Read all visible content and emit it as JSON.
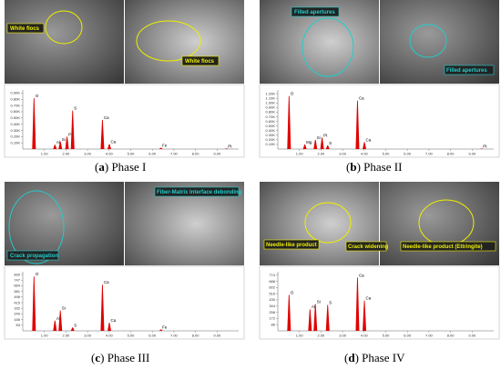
{
  "panels": [
    {
      "letter": "a",
      "caption": "Phase I",
      "image_labels": [
        "White flocs",
        "White flocs"
      ],
      "spectrum": {
        "ylim": [
          0,
          0.95
        ],
        "yticks": [
          {
            "value": 0.1,
            "label": "0.10K"
          },
          {
            "value": 0.2,
            "label": "0.20K"
          },
          {
            "value": 0.3,
            "label": "0.30K"
          },
          {
            "value": 0.4,
            "label": "0.40K"
          },
          {
            "value": 0.5,
            "label": "0.50K"
          },
          {
            "value": 0.6,
            "label": "0.60K"
          },
          {
            "value": 0.7,
            "label": "0.70K"
          },
          {
            "value": 0.8,
            "label": "0.80K"
          },
          {
            "value": 0.9,
            "label": "0.90K"
          }
        ],
        "xlim": [
          0,
          10
        ],
        "xticks": [
          {
            "value": 1,
            "label": "1.00"
          },
          {
            "value": 2,
            "label": "2.00"
          },
          {
            "value": 3,
            "label": "3.00"
          },
          {
            "value": 4,
            "label": "4.00"
          },
          {
            "value": 5,
            "label": "5.00"
          },
          {
            "value": 6,
            "label": "6.00"
          },
          {
            "value": 7,
            "label": "7.00"
          },
          {
            "value": 8,
            "label": "8.00"
          },
          {
            "value": 9,
            "label": "9.00"
          }
        ],
        "peaks": [
          {
            "label": "O",
            "x": 0.52,
            "y": 0.82
          },
          {
            "label": "Al",
            "x": 1.49,
            "y": 0.07
          },
          {
            "label": "Si",
            "x": 1.74,
            "y": 0.12
          },
          {
            "label": "Pt",
            "x": 2.05,
            "y": 0.2
          },
          {
            "label": "S",
            "x": 2.31,
            "y": 0.62
          },
          {
            "label": "Ca",
            "x": 3.69,
            "y": 0.47
          },
          {
            "label": "Ca",
            "x": 4.01,
            "y": 0.08
          },
          {
            "label": "Fe",
            "x": 6.4,
            "y": 0.02
          },
          {
            "label": "Pt",
            "x": 9.44,
            "y": 0.01
          }
        ]
      }
    },
    {
      "letter": "b",
      "caption": "Phase II",
      "image_labels": [
        "Filled apertures",
        "Filled apertures"
      ],
      "spectrum": {
        "ylim": [
          0,
          1.28
        ],
        "yticks": [
          {
            "value": 0.1,
            "label": "0.10K"
          },
          {
            "value": 0.2,
            "label": "0.20K"
          },
          {
            "value": 0.3,
            "label": "0.30K"
          },
          {
            "value": 0.4,
            "label": "0.40K"
          },
          {
            "value": 0.5,
            "label": "0.50K"
          },
          {
            "value": 0.6,
            "label": "0.60K"
          },
          {
            "value": 0.7,
            "label": "0.70K"
          },
          {
            "value": 0.8,
            "label": "0.80K"
          },
          {
            "value": 0.9,
            "label": "0.90K"
          },
          {
            "value": 1.0,
            "label": "1.00K"
          },
          {
            "value": 1.1,
            "label": "1.10K"
          },
          {
            "value": 1.2,
            "label": "1.20K"
          }
        ],
        "xlim": [
          0,
          10
        ],
        "xticks": [
          {
            "value": 1,
            "label": "1.00"
          },
          {
            "value": 2,
            "label": "2.00"
          },
          {
            "value": 3,
            "label": "3.00"
          },
          {
            "value": 4,
            "label": "4.00"
          },
          {
            "value": 5,
            "label": "5.00"
          },
          {
            "value": 6,
            "label": "6.00"
          },
          {
            "value": 7,
            "label": "7.00"
          },
          {
            "value": 8,
            "label": "8.00"
          },
          {
            "value": 9,
            "label": "9.00"
          }
        ],
        "peaks": [
          {
            "label": "O",
            "x": 0.52,
            "y": 1.15
          },
          {
            "label": "Mg",
            "x": 1.25,
            "y": 0.1
          },
          {
            "label": "Si",
            "x": 1.74,
            "y": 0.2
          },
          {
            "label": "Pt",
            "x": 2.05,
            "y": 0.25
          },
          {
            "label": "S",
            "x": 2.31,
            "y": 0.08
          },
          {
            "label": "Ca",
            "x": 3.69,
            "y": 1.05
          },
          {
            "label": "Ca",
            "x": 4.01,
            "y": 0.15
          },
          {
            "label": "Pt",
            "x": 9.44,
            "y": 0.01
          }
        ]
      }
    },
    {
      "letter": "c",
      "caption": "Phase III",
      "image_labels": [
        "Crack propagation",
        "Fiber-Matrix Interface debonding"
      ],
      "spectrum": {
        "ylim": [
          0,
          870
        ],
        "yticks": [
          83,
          166,
          249,
          332,
          415,
          498,
          581,
          664,
          747,
          830
        ],
        "xlim": [
          0,
          10
        ],
        "xticks": [
          {
            "value": 1,
            "label": "1.00"
          },
          {
            "value": 2,
            "label": "2.00"
          },
          {
            "value": 3,
            "label": "3.00"
          },
          {
            "value": 4,
            "label": "4.00"
          },
          {
            "value": 5,
            "label": "5.00"
          },
          {
            "value": 6,
            "label": "6.00"
          },
          {
            "value": 7,
            "label": "7.00"
          },
          {
            "value": 8,
            "label": "8.00"
          },
          {
            "value": 9,
            "label": "9.00"
          }
        ],
        "peaks": [
          {
            "label": "O",
            "x": 0.52,
            "y": 800
          },
          {
            "label": "Al",
            "x": 1.49,
            "y": 150
          },
          {
            "label": "Si",
            "x": 1.74,
            "y": 300
          },
          {
            "label": "S",
            "x": 2.31,
            "y": 50
          },
          {
            "label": "Ca",
            "x": 3.69,
            "y": 680
          },
          {
            "label": "Ca",
            "x": 4.01,
            "y": 120
          },
          {
            "label": "Fe",
            "x": 6.4,
            "y": 20
          }
        ]
      }
    },
    {
      "letter": "d",
      "caption": "Phase IV",
      "image_labels": [
        "Needle-like product",
        "Crack widening",
        "Needle-like product (Ettringite)"
      ],
      "spectrum": {
        "ylim": [
          0,
          820
        ],
        "yticks": [
          86,
          172,
          258,
          344,
          430,
          516,
          602,
          688,
          774
        ],
        "xlim": [
          0,
          10
        ],
        "xticks": [
          {
            "value": 1,
            "label": "1.00"
          },
          {
            "value": 2,
            "label": "2.00"
          },
          {
            "value": 3,
            "label": "3.00"
          },
          {
            "value": 4,
            "label": "4.00"
          },
          {
            "value": 5,
            "label": "5.00"
          },
          {
            "value": 6,
            "label": "6.00"
          },
          {
            "value": 7,
            "label": "7.00"
          },
          {
            "value": 8,
            "label": "8.00"
          },
          {
            "value": 9,
            "label": "9.00"
          }
        ],
        "peaks": [
          {
            "label": "O",
            "x": 0.52,
            "y": 500
          },
          {
            "label": "Al",
            "x": 1.49,
            "y": 300
          },
          {
            "label": "Si",
            "x": 1.74,
            "y": 370
          },
          {
            "label": "S",
            "x": 2.31,
            "y": 360
          },
          {
            "label": "Ca",
            "x": 3.69,
            "y": 740
          },
          {
            "label": "Ca",
            "x": 4.01,
            "y": 420
          }
        ]
      }
    }
  ]
}
